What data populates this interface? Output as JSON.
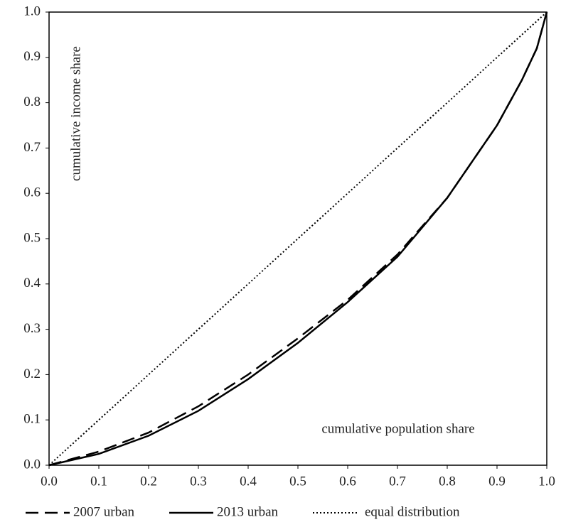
{
  "chart_data": {
    "type": "line",
    "xlabel": "cumulative population share",
    "ylabel": "cumulative income share",
    "x": [
      0,
      0.1,
      0.2,
      0.3,
      0.4,
      0.5,
      0.6,
      0.7,
      0.8,
      0.9,
      0.95,
      0.98,
      1
    ],
    "series": [
      {
        "name": "2007 urban",
        "color": "#000000",
        "style": "dashed",
        "values": [
          0,
          0.03,
          0.072,
          0.13,
          0.2,
          0.28,
          0.365,
          0.465,
          0.59,
          0.75,
          0.85,
          0.92,
          1
        ]
      },
      {
        "name": "2013 urban",
        "color": "#000000",
        "style": "solid",
        "values": [
          0,
          0.025,
          0.065,
          0.12,
          0.19,
          0.27,
          0.36,
          0.46,
          0.59,
          0.75,
          0.85,
          0.92,
          1
        ]
      },
      {
        "name": "equal distribution",
        "color": "#000000",
        "style": "dotted",
        "values": [
          0,
          0.1,
          0.2,
          0.3,
          0.4,
          0.5,
          0.6,
          0.7,
          0.8,
          0.9,
          0.95,
          0.98,
          1
        ]
      }
    ],
    "xlim": [
      0,
      1
    ],
    "ylim": [
      0,
      1
    ],
    "xticks": [
      {
        "value": 0,
        "label": "0.0"
      },
      0.1,
      0.2,
      0.3,
      0.4,
      0.5,
      0.6,
      0.7,
      0.8,
      0.9,
      {
        "value": 1,
        "label": "1.0"
      }
    ],
    "yticks": [
      {
        "value": 0,
        "label": "0.0"
      },
      0.1,
      0.2,
      0.3,
      0.4,
      0.5,
      0.6,
      0.7,
      0.8,
      0.9,
      {
        "value": 1,
        "label": "1.0"
      }
    ],
    "legend": "bottom"
  }
}
